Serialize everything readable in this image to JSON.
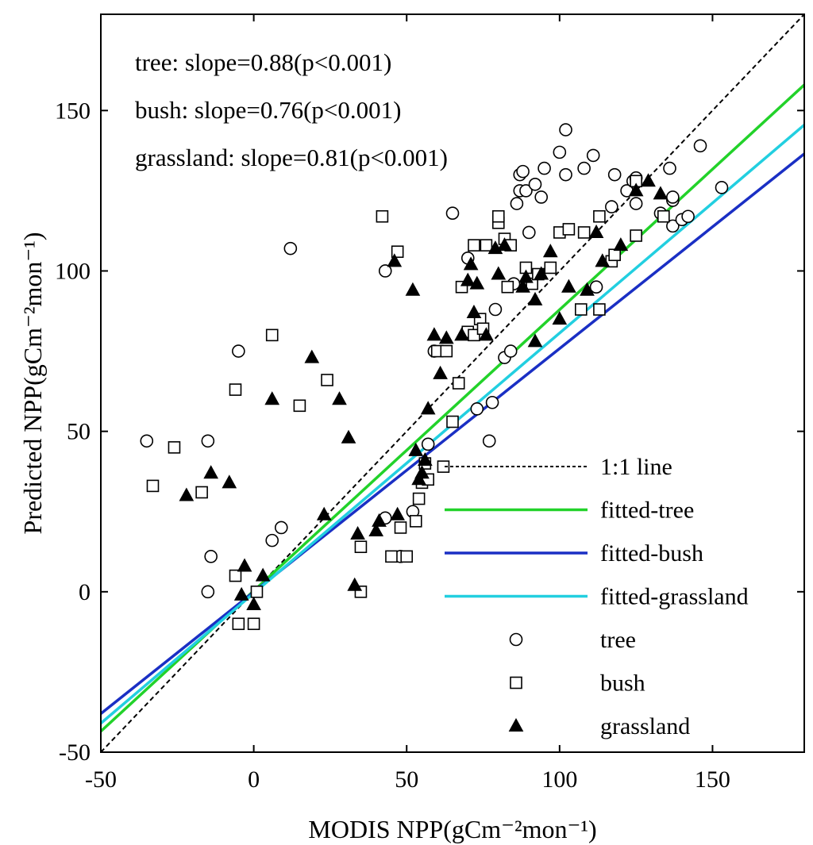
{
  "chart_data": {
    "type": "scatter",
    "xlabel": "MODIS NPP(gCm⁻²mon⁻¹)",
    "ylabel": "Predicted NPP(gCm⁻²mon⁻¹)",
    "xlim": [
      -50,
      180
    ],
    "ylim": [
      -50,
      180
    ],
    "xticks": [
      -50,
      0,
      50,
      100,
      150
    ],
    "yticks": [
      -50,
      0,
      50,
      100,
      150
    ],
    "annotations": [
      "tree: slope=0.88(p<0.001)",
      "bush: slope=0.76(p<0.001)",
      "grassland: slope=0.81(p<0.001)"
    ],
    "legend_position": "bottom-right",
    "lines": [
      {
        "name": "1:1 line",
        "color": "#000000",
        "dash": true,
        "points": [
          [
            -50,
            -50
          ],
          [
            180,
            180
          ]
        ]
      },
      {
        "name": "fitted-tree",
        "color": "#22d22a",
        "dash": false,
        "points": [
          [
            -50,
            -43.5
          ],
          [
            180,
            158
          ]
        ]
      },
      {
        "name": "fitted-bush",
        "color": "#1a2fc4",
        "dash": false,
        "points": [
          [
            -50,
            -38
          ],
          [
            180,
            136.5
          ]
        ]
      },
      {
        "name": "fitted-grassland",
        "color": "#22cfe0",
        "dash": false,
        "points": [
          [
            -50,
            -41
          ],
          [
            180,
            145.5
          ]
        ]
      }
    ],
    "series": [
      {
        "name": "tree",
        "marker": "circle",
        "points": [
          [
            -35,
            47
          ],
          [
            -15,
            47
          ],
          [
            -14,
            11
          ],
          [
            -15,
            0
          ],
          [
            -5,
            75
          ],
          [
            6,
            16
          ],
          [
            9,
            20
          ],
          [
            12,
            107
          ],
          [
            43,
            100
          ],
          [
            43,
            23
          ],
          [
            48,
            11
          ],
          [
            52,
            25
          ],
          [
            57,
            46
          ],
          [
            59,
            75
          ],
          [
            65,
            118
          ],
          [
            70,
            104
          ],
          [
            73,
            57
          ],
          [
            77,
            47
          ],
          [
            78,
            59
          ],
          [
            79,
            88
          ],
          [
            82,
            73
          ],
          [
            84,
            75
          ],
          [
            85,
            96
          ],
          [
            86,
            121
          ],
          [
            87,
            125
          ],
          [
            87,
            130
          ],
          [
            88,
            131
          ],
          [
            89,
            125
          ],
          [
            90,
            112
          ],
          [
            92,
            127
          ],
          [
            94,
            123
          ],
          [
            95,
            132
          ],
          [
            100,
            137
          ],
          [
            102,
            144
          ],
          [
            102,
            130
          ],
          [
            108,
            132
          ],
          [
            111,
            136
          ],
          [
            112,
            95
          ],
          [
            117,
            120
          ],
          [
            118,
            130
          ],
          [
            122,
            125
          ],
          [
            124,
            128
          ],
          [
            125,
            121
          ],
          [
            125,
            129
          ],
          [
            133,
            118
          ],
          [
            136,
            132
          ],
          [
            137,
            122
          ],
          [
            137,
            114
          ],
          [
            137,
            123
          ],
          [
            140,
            116
          ],
          [
            142,
            117
          ],
          [
            146,
            139
          ],
          [
            153,
            126
          ]
        ]
      },
      {
        "name": "bush",
        "marker": "square",
        "points": [
          [
            -33,
            33
          ],
          [
            -26,
            45
          ],
          [
            -17,
            31
          ],
          [
            -6,
            63
          ],
          [
            -6,
            5
          ],
          [
            -5,
            -10
          ],
          [
            0,
            -10
          ],
          [
            1,
            0
          ],
          [
            6,
            80
          ],
          [
            15,
            58
          ],
          [
            24,
            66
          ],
          [
            35,
            14
          ],
          [
            35,
            0
          ],
          [
            42,
            117
          ],
          [
            45,
            11
          ],
          [
            47,
            106
          ],
          [
            48,
            20
          ],
          [
            50,
            11
          ],
          [
            53,
            22
          ],
          [
            54,
            29
          ],
          [
            55,
            34
          ],
          [
            56,
            40
          ],
          [
            57,
            35
          ],
          [
            60,
            75
          ],
          [
            62,
            39
          ],
          [
            63,
            75
          ],
          [
            65,
            53
          ],
          [
            67,
            65
          ],
          [
            68,
            95
          ],
          [
            70,
            81
          ],
          [
            72,
            108
          ],
          [
            72,
            80
          ],
          [
            74,
            85
          ],
          [
            75,
            82
          ],
          [
            76,
            108
          ],
          [
            80,
            115
          ],
          [
            80,
            117
          ],
          [
            82,
            110
          ],
          [
            83,
            95
          ],
          [
            84,
            108
          ],
          [
            89,
            101
          ],
          [
            91,
            96
          ],
          [
            93,
            99
          ],
          [
            97,
            101
          ],
          [
            100,
            112
          ],
          [
            103,
            113
          ],
          [
            107,
            88
          ],
          [
            108,
            112
          ],
          [
            113,
            88
          ],
          [
            113,
            117
          ],
          [
            117,
            103
          ],
          [
            118,
            105
          ],
          [
            125,
            111
          ],
          [
            125,
            128
          ],
          [
            134,
            117
          ]
        ]
      },
      {
        "name": "grassland",
        "marker": "triangle",
        "points": [
          [
            -22,
            30
          ],
          [
            -14,
            37
          ],
          [
            -8,
            34
          ],
          [
            -4,
            -1
          ],
          [
            -3,
            8
          ],
          [
            0,
            -4
          ],
          [
            3,
            5
          ],
          [
            6,
            60
          ],
          [
            19,
            73
          ],
          [
            23,
            24
          ],
          [
            28,
            60
          ],
          [
            31,
            48
          ],
          [
            33,
            2
          ],
          [
            34,
            18
          ],
          [
            40,
            19
          ],
          [
            41,
            22
          ],
          [
            46,
            103
          ],
          [
            47,
            24
          ],
          [
            52,
            94
          ],
          [
            53,
            44
          ],
          [
            54,
            35
          ],
          [
            55,
            37
          ],
          [
            56,
            41
          ],
          [
            57,
            57
          ],
          [
            59,
            80
          ],
          [
            61,
            68
          ],
          [
            63,
            79
          ],
          [
            68,
            80
          ],
          [
            70,
            97
          ],
          [
            71,
            102
          ],
          [
            72,
            87
          ],
          [
            73,
            96
          ],
          [
            76,
            80
          ],
          [
            79,
            107
          ],
          [
            80,
            99
          ],
          [
            82,
            108
          ],
          [
            88,
            95
          ],
          [
            89,
            98
          ],
          [
            94,
            99
          ],
          [
            97,
            106
          ],
          [
            100,
            85
          ],
          [
            103,
            95
          ],
          [
            109,
            94
          ],
          [
            112,
            112
          ],
          [
            114,
            103
          ],
          [
            120,
            108
          ],
          [
            125,
            125
          ],
          [
            129,
            128
          ],
          [
            133,
            124
          ],
          [
            92,
            78
          ],
          [
            92,
            91
          ]
        ]
      }
    ]
  }
}
